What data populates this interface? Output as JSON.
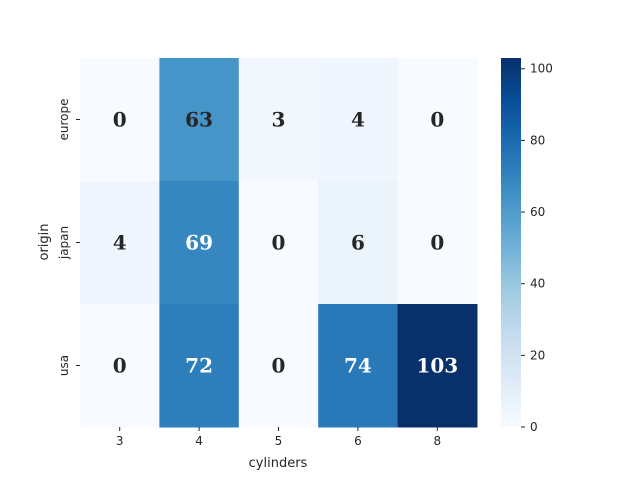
{
  "chart_data": {
    "type": "heatmap",
    "title": "",
    "xlabel": "cylinders",
    "ylabel": "origin",
    "x_categories": [
      "3",
      "4",
      "5",
      "6",
      "8"
    ],
    "y_categories": [
      "europe",
      "japan",
      "usa"
    ],
    "values": [
      [
        0,
        63,
        3,
        4,
        0
      ],
      [
        4,
        69,
        0,
        6,
        0
      ],
      [
        0,
        72,
        0,
        74,
        103
      ]
    ],
    "colormap": "Blues",
    "vmin": 0,
    "vmax": 103,
    "colorbar_ticks": [
      "0",
      "20",
      "40",
      "60",
      "80",
      "100"
    ],
    "annotation_dark_color": "#262626",
    "annotation_light_color": "#ffffff",
    "grid": false
  }
}
